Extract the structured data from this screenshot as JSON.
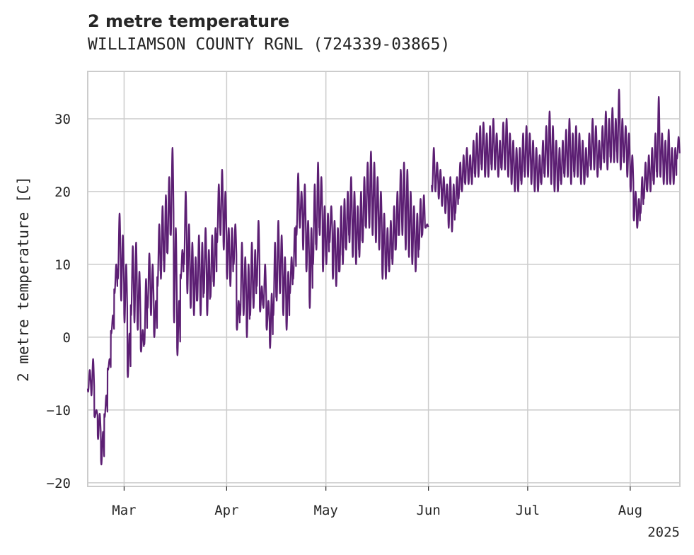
{
  "chart_data": {
    "type": "line",
    "title": "2 metre temperature",
    "subtitle": "WILLIAMSON COUNTY RGNL (724339-03865)",
    "ylabel": "2 metre temperature [C]",
    "xlabel": "",
    "ylim": [
      -20.5,
      36.5
    ],
    "xlim": [
      "2025-02-18",
      "2025-08-16"
    ],
    "yticks": [
      -20,
      -10,
      0,
      10,
      20,
      30
    ],
    "xticks": [
      {
        "date": "2025-03-01",
        "label": "Mar"
      },
      {
        "date": "2025-04-01",
        "label": "Apr"
      },
      {
        "date": "2025-05-01",
        "label": "May"
      },
      {
        "date": "2025-06-01",
        "label": "Jun"
      },
      {
        "date": "2025-07-01",
        "label": "Jul"
      },
      {
        "date": "2025-08-01",
        "label": "Aug"
      }
    ],
    "year_label": "2025",
    "grid": true,
    "line_color": "#5c1f73",
    "series": [
      {
        "daily": [
          [
            "2025-02-18",
            -7.5,
            -4.5
          ],
          [
            "2025-02-19",
            -8.0,
            -3.0
          ],
          [
            "2025-02-20",
            -11.0,
            -10.0
          ],
          [
            "2025-02-21",
            -14.0,
            -10.5
          ],
          [
            "2025-02-22",
            -17.5,
            -13.0
          ],
          [
            "2025-02-23",
            -11.0,
            -8.0
          ],
          [
            "2025-02-24",
            -4.5,
            -3.0
          ],
          [
            "2025-02-25",
            0.5,
            3.0
          ],
          [
            "2025-02-26",
            6.0,
            10.0
          ],
          [
            "2025-02-27",
            8.0,
            17.0
          ],
          [
            "2025-02-28",
            5.0,
            14.0
          ],
          [
            "2025-03-01",
            2.0,
            10.0
          ],
          [
            "2025-03-02",
            -5.5,
            0.5
          ],
          [
            "2025-03-03",
            3.0,
            12.5
          ],
          [
            "2025-03-04",
            2.0,
            13.0
          ],
          [
            "2025-03-05",
            1.0,
            9.0
          ],
          [
            "2025-03-06",
            -2.0,
            1.0
          ],
          [
            "2025-03-07",
            -1.0,
            8.0
          ],
          [
            "2025-03-08",
            4.0,
            11.5
          ],
          [
            "2025-03-09",
            3.0,
            10.0
          ],
          [
            "2025-03-10",
            0.0,
            5.0
          ],
          [
            "2025-03-11",
            7.0,
            15.5
          ],
          [
            "2025-03-12",
            8.0,
            18.0
          ],
          [
            "2025-03-13",
            9.0,
            19.5
          ],
          [
            "2025-03-14",
            11.5,
            22.0
          ],
          [
            "2025-03-15",
            14.0,
            26.0
          ],
          [
            "2025-03-16",
            2.0,
            15.0
          ],
          [
            "2025-03-17",
            -2.5,
            5.0
          ],
          [
            "2025-03-18",
            8.0,
            12.0
          ],
          [
            "2025-03-19",
            10.0,
            20.0
          ],
          [
            "2025-03-20",
            6.0,
            15.5
          ],
          [
            "2025-03-21",
            4.0,
            13.0
          ],
          [
            "2025-03-22",
            3.0,
            11.0
          ],
          [
            "2025-03-23",
            5.0,
            14.0
          ],
          [
            "2025-03-24",
            3.0,
            13.0
          ],
          [
            "2025-03-25",
            6.0,
            15.0
          ],
          [
            "2025-03-26",
            3.0,
            12.0
          ],
          [
            "2025-03-27",
            5.5,
            14.0
          ],
          [
            "2025-03-28",
            7.0,
            15.0
          ],
          [
            "2025-03-29",
            13.0,
            21.0
          ],
          [
            "2025-03-30",
            14.0,
            23.0
          ],
          [
            "2025-03-31",
            12.0,
            20.0
          ],
          [
            "2025-04-01",
            8.0,
            15.0
          ],
          [
            "2025-04-02",
            7.0,
            15.0
          ],
          [
            "2025-04-03",
            10.0,
            15.5
          ],
          [
            "2025-04-04",
            1.0,
            5.0
          ],
          [
            "2025-04-05",
            3.0,
            13.0
          ],
          [
            "2025-04-06",
            3.0,
            11.0
          ],
          [
            "2025-04-07",
            0.0,
            10.0
          ],
          [
            "2025-04-08",
            3.0,
            13.0
          ],
          [
            "2025-04-09",
            4.0,
            12.0
          ],
          [
            "2025-04-10",
            7.0,
            16.0
          ],
          [
            "2025-04-11",
            3.5,
            7.0
          ],
          [
            "2025-04-12",
            4.0,
            10.0
          ],
          [
            "2025-04-13",
            1.0,
            5.0
          ],
          [
            "2025-04-14",
            -1.5,
            6.0
          ],
          [
            "2025-04-15",
            3.0,
            13.0
          ],
          [
            "2025-04-16",
            5.0,
            16.0
          ],
          [
            "2025-04-17",
            6.0,
            14.0
          ],
          [
            "2025-04-18",
            3.0,
            11.0
          ],
          [
            "2025-04-19",
            1.0,
            9.0
          ],
          [
            "2025-04-20",
            6.0,
            11.0
          ],
          [
            "2025-04-21",
            8.0,
            15.0
          ],
          [
            "2025-04-22",
            14.0,
            22.5
          ],
          [
            "2025-04-23",
            15.0,
            20.0
          ],
          [
            "2025-04-24",
            12.0,
            21.0
          ],
          [
            "2025-04-25",
            9.0,
            16.0
          ],
          [
            "2025-04-26",
            4.0,
            15.0
          ],
          [
            "2025-04-27",
            10.0,
            21.0
          ],
          [
            "2025-04-28",
            12.0,
            24.0
          ],
          [
            "2025-04-29",
            14.0,
            22.0
          ],
          [
            "2025-04-30",
            9.0,
            18.0
          ],
          [
            "2025-05-01",
            10.0,
            17.0
          ],
          [
            "2025-05-02",
            13.0,
            18.0
          ],
          [
            "2025-05-03",
            8.0,
            16.0
          ],
          [
            "2025-05-04",
            7.0,
            15.0
          ],
          [
            "2025-05-05",
            9.0,
            18.0
          ],
          [
            "2025-05-06",
            10.0,
            19.0
          ],
          [
            "2025-05-07",
            12.0,
            20.0
          ],
          [
            "2025-05-08",
            13.0,
            22.0
          ],
          [
            "2025-05-09",
            11.0,
            20.0
          ],
          [
            "2025-05-10",
            10.0,
            18.0
          ],
          [
            "2025-05-11",
            11.0,
            20.0
          ],
          [
            "2025-05-12",
            13.0,
            22.0
          ],
          [
            "2025-05-13",
            15.0,
            24.0
          ],
          [
            "2025-05-14",
            15.0,
            25.5
          ],
          [
            "2025-05-15",
            14.0,
            24.0
          ],
          [
            "2025-05-16",
            13.0,
            22.0
          ],
          [
            "2025-05-17",
            12.0,
            20.0
          ],
          [
            "2025-05-18",
            8.0,
            17.0
          ],
          [
            "2025-05-19",
            8.0,
            15.0
          ],
          [
            "2025-05-20",
            9.0,
            16.0
          ],
          [
            "2025-05-21",
            10.0,
            18.0
          ],
          [
            "2025-05-22",
            12.0,
            20.0
          ],
          [
            "2025-05-23",
            14.0,
            23.0
          ],
          [
            "2025-05-24",
            14.0,
            24.0
          ],
          [
            "2025-05-25",
            12.0,
            23.0
          ],
          [
            "2025-05-26",
            11.0,
            20.0
          ],
          [
            "2025-05-27",
            10.0,
            18.0
          ],
          [
            "2025-05-28",
            9.0,
            17.0
          ],
          [
            "2025-05-29",
            12.0,
            19.0
          ],
          [
            "2025-05-30",
            14.0,
            19.5
          ],
          [
            "2025-05-31",
            15.0,
            15.5
          ]
        ]
      },
      {
        "daily": [
          [
            "2025-06-02",
            20.0,
            26.0
          ],
          [
            "2025-06-03",
            20.0,
            24.0
          ],
          [
            "2025-06-04",
            19.0,
            23.0
          ],
          [
            "2025-06-05",
            18.0,
            22.0
          ],
          [
            "2025-06-06",
            17.0,
            21.0
          ],
          [
            "2025-06-07",
            15.0,
            22.0
          ],
          [
            "2025-06-08",
            14.5,
            21.0
          ],
          [
            "2025-06-09",
            17.0,
            22.0
          ],
          [
            "2025-06-10",
            19.0,
            24.0
          ],
          [
            "2025-06-11",
            20.0,
            25.0
          ],
          [
            "2025-06-12",
            21.0,
            26.0
          ],
          [
            "2025-06-13",
            21.0,
            25.0
          ],
          [
            "2025-06-14",
            21.0,
            27.0
          ],
          [
            "2025-06-15",
            22.0,
            28.0
          ],
          [
            "2025-06-16",
            22.0,
            29.0
          ],
          [
            "2025-06-17",
            23.0,
            29.5
          ],
          [
            "2025-06-18",
            22.0,
            28.0
          ],
          [
            "2025-06-19",
            22.0,
            29.0
          ],
          [
            "2025-06-20",
            23.0,
            30.0
          ],
          [
            "2025-06-21",
            23.0,
            28.0
          ],
          [
            "2025-06-22",
            22.0,
            27.0
          ],
          [
            "2025-06-23",
            23.0,
            29.5
          ],
          [
            "2025-06-24",
            23.0,
            30.0
          ],
          [
            "2025-06-25",
            22.0,
            28.0
          ],
          [
            "2025-06-26",
            21.0,
            27.0
          ],
          [
            "2025-06-27",
            20.0,
            26.0
          ],
          [
            "2025-06-28",
            20.0,
            26.0
          ],
          [
            "2025-06-29",
            21.0,
            28.0
          ],
          [
            "2025-06-30",
            22.0,
            29.0
          ],
          [
            "2025-07-01",
            22.0,
            28.0
          ],
          [
            "2025-07-02",
            21.0,
            27.0
          ],
          [
            "2025-07-03",
            20.0,
            26.0
          ],
          [
            "2025-07-04",
            20.0,
            25.0
          ],
          [
            "2025-07-05",
            21.0,
            27.0
          ],
          [
            "2025-07-06",
            22.0,
            29.0
          ],
          [
            "2025-07-07",
            22.0,
            31.0
          ],
          [
            "2025-07-08",
            21.0,
            29.0
          ],
          [
            "2025-07-09",
            20.0,
            27.0
          ],
          [
            "2025-07-10",
            20.0,
            26.0
          ],
          [
            "2025-07-11",
            21.0,
            27.0
          ],
          [
            "2025-07-12",
            22.0,
            28.5
          ],
          [
            "2025-07-13",
            22.0,
            30.0
          ],
          [
            "2025-07-14",
            21.0,
            28.0
          ],
          [
            "2025-07-15",
            22.0,
            29.0
          ],
          [
            "2025-07-16",
            22.0,
            28.0
          ],
          [
            "2025-07-17",
            21.0,
            27.0
          ],
          [
            "2025-07-18",
            21.0,
            26.0
          ],
          [
            "2025-07-19",
            22.0,
            28.0
          ],
          [
            "2025-07-20",
            23.0,
            30.0
          ],
          [
            "2025-07-21",
            23.0,
            29.0
          ],
          [
            "2025-07-22",
            22.0,
            27.0
          ],
          [
            "2025-07-23",
            23.0,
            29.0
          ],
          [
            "2025-07-24",
            24.0,
            31.0
          ],
          [
            "2025-07-25",
            23.0,
            30.0
          ],
          [
            "2025-07-26",
            24.0,
            31.5
          ],
          [
            "2025-07-27",
            24.0,
            30.0
          ],
          [
            "2025-07-28",
            24.0,
            34.0
          ],
          [
            "2025-07-29",
            23.0,
            30.0
          ],
          [
            "2025-07-30",
            24.0,
            29.0
          ],
          [
            "2025-07-31",
            22.0,
            28.0
          ],
          [
            "2025-08-01",
            20.0,
            25.0
          ],
          [
            "2025-08-02",
            16.0,
            20.0
          ],
          [
            "2025-08-03",
            15.0,
            19.0
          ],
          [
            "2025-08-04",
            17.0,
            22.0
          ],
          [
            "2025-08-05",
            19.0,
            24.0
          ],
          [
            "2025-08-06",
            20.0,
            25.0
          ],
          [
            "2025-08-07",
            20.0,
            26.0
          ],
          [
            "2025-08-08",
            21.0,
            28.0
          ],
          [
            "2025-08-09",
            22.0,
            33.0
          ],
          [
            "2025-08-10",
            22.0,
            28.0
          ],
          [
            "2025-08-11",
            21.0,
            27.0
          ],
          [
            "2025-08-12",
            21.0,
            28.5
          ],
          [
            "2025-08-13",
            21.0,
            26.0
          ],
          [
            "2025-08-14",
            21.0,
            26.0
          ],
          [
            "2025-08-15",
            24.5,
            27.5
          ]
        ]
      }
    ]
  }
}
